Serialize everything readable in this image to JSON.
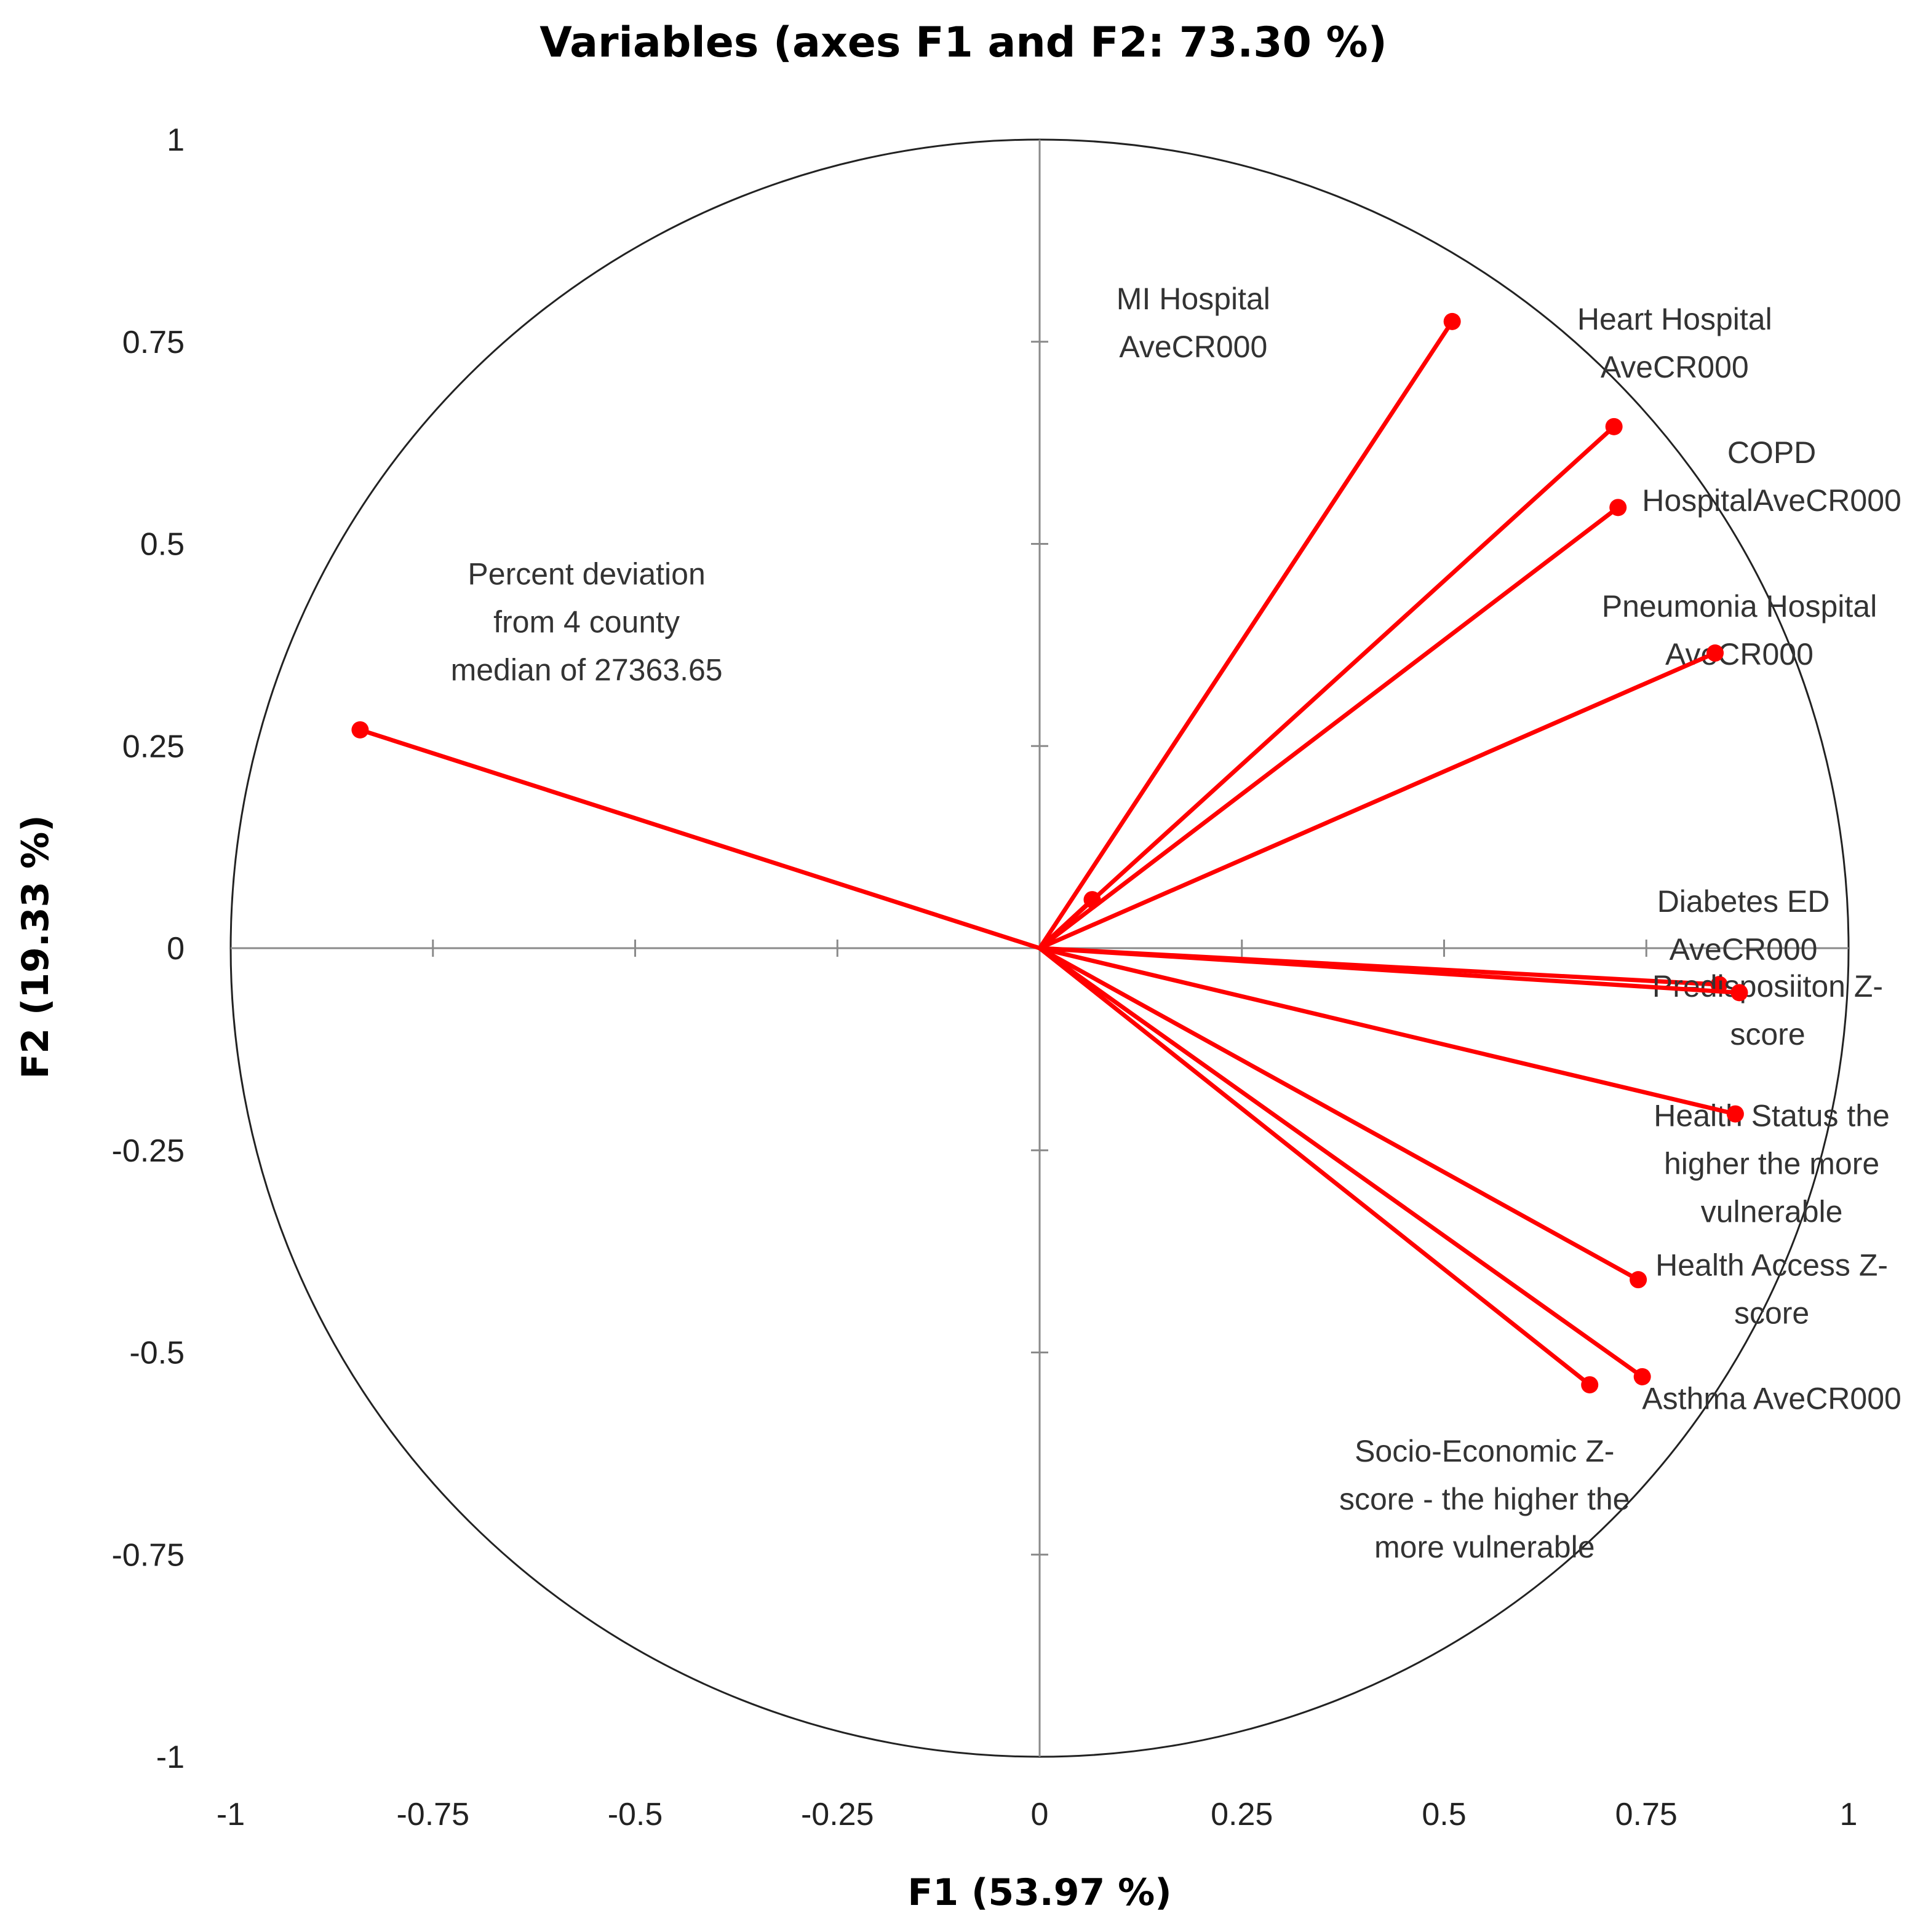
{
  "chart_data": {
    "type": "scatter",
    "subtype": "correlation-circle",
    "title": "Variables (axes F1 and F2: 73.30 %)",
    "xlabel": "F1 (53.97 %)",
    "ylabel": "F2 (19.33 %)",
    "xlim": [
      -1,
      1
    ],
    "ylim": [
      -1,
      1
    ],
    "x_ticks": [
      -1,
      -0.75,
      -0.5,
      -0.25,
      0,
      0.25,
      0.5,
      0.75,
      1
    ],
    "y_ticks": [
      -1,
      -0.75,
      -0.5,
      -0.25,
      0,
      0.25,
      0.5,
      0.75,
      1
    ],
    "x_tick_labels": [
      "-1",
      "-0.75",
      "-0.5",
      "-0.25",
      "0",
      "0.25",
      "0.5",
      "0.75",
      "1"
    ],
    "y_tick_labels": [
      "-1",
      "-0.75",
      "-0.5",
      "-0.25",
      "0",
      "0.25",
      "0.5",
      "0.75",
      "1"
    ],
    "grid": false,
    "unit_circle": true,
    "series_color": "#ff0000",
    "variables": [
      {
        "name": "MI Hospital AveCR000",
        "label_lines": [
          "MI Hospital",
          "AveCR000"
        ],
        "x": 0.065,
        "y": 0.06,
        "label_anchor": [
          0.19,
          0.79
        ]
      },
      {
        "name": "Heart Hospital AveCR000",
        "label_lines": [
          "Heart Hospital",
          "AveCR000"
        ],
        "x": 0.51,
        "y": 0.775,
        "label_anchor": [
          0.785,
          0.765
        ]
      },
      {
        "name": "COPD HospitalAveCR000",
        "label_lines": [
          "COPD",
          "HospitalAveCR000"
        ],
        "x": 0.71,
        "y": 0.645,
        "label_anchor": [
          0.905,
          0.6
        ]
      },
      {
        "name": "Pneumonia Hospital AveCR000",
        "label_lines": [
          "Pneumonia Hospital",
          "AveCR000"
        ],
        "x": 0.715,
        "y": 0.545,
        "label_anchor": [
          0.865,
          0.41
        ]
      },
      {
        "name": "Percent deviation from 4 county median of 27363.65",
        "label_lines": [
          "Percent deviation",
          "from 4 county",
          "median of 27363.65"
        ],
        "x": -0.84,
        "y": 0.27,
        "label_anchor": [
          -0.56,
          0.45
        ]
      },
      {
        "name": "Diabetes ED AveCR000",
        "label_lines": [
          "Diabetes ED",
          "AveCR000"
        ],
        "x": 0.835,
        "y": 0.365,
        "label_anchor": [
          0.87,
          0.045
        ]
      },
      {
        "name": "Predisposiiton Z-score",
        "label_lines": [
          "Predisposiiton Z-",
          "score"
        ],
        "x": 0.84,
        "y": -0.045,
        "label_anchor": [
          0.9,
          -0.06
        ]
      },
      {
        "name": "Health Status the higher the more vulnerable",
        "label_lines": [
          "Health Status the",
          "higher the more",
          "vulnerable"
        ],
        "x": 0.865,
        "y": -0.055,
        "label_anchor": [
          0.905,
          -0.22
        ]
      },
      {
        "name": "Health Access Z-score",
        "label_lines": [
          "Health Access Z-",
          "score"
        ],
        "x": 0.86,
        "y": -0.205,
        "label_anchor": [
          0.905,
          -0.405
        ]
      },
      {
        "name": "Asthma AveCR000",
        "label_lines": [
          "Asthma AveCR000"
        ],
        "x": 0.74,
        "y": -0.41,
        "label_anchor": [
          0.905,
          -0.57
        ]
      },
      {
        "name": "Socio-Economic Z-score - the higher the more vulnerable",
        "label_lines": [
          "Socio-Economic Z-",
          "score - the higher the",
          "more vulnerable"
        ],
        "x": 0.745,
        "y": -0.53,
        "label_anchor": [
          0.55,
          -0.635
        ]
      },
      {
        "name": "(unlabeled)",
        "label_lines": [],
        "x": 0.68,
        "y": -0.54,
        "label_anchor": [
          0.68,
          -0.54
        ]
      }
    ]
  }
}
